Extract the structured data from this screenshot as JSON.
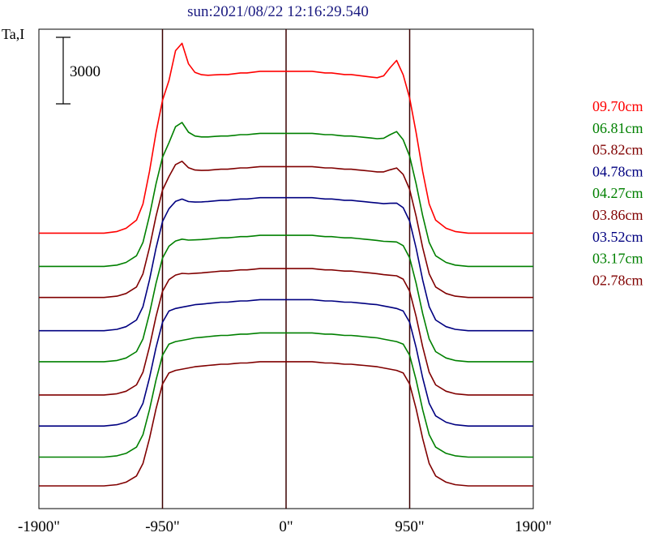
{
  "chart_data": {
    "type": "line",
    "title": "sun:2021/08/22 12:16:29.540",
    "ylabel": "Ta,I",
    "xlabel": "",
    "xlim": [
      -1900,
      1900
    ],
    "x_ticks": [
      -1900,
      -950,
      0,
      950,
      1900
    ],
    "x_tick_labels": [
      "-1900\"",
      "-950\"",
      "0\"",
      "950\"",
      "1900\""
    ],
    "vertical_lines": [
      -950,
      0,
      950
    ],
    "scale_bar": {
      "value": 3000,
      "label": "3000"
    },
    "curve_shape": {
      "x": [
        -1900,
        -1400,
        -1300,
        -1230,
        -1150,
        -1100,
        -1050,
        -1000,
        -950,
        -900,
        -850,
        -800,
        -750,
        -700,
        -650,
        -600,
        -550,
        -500,
        -450,
        -400,
        -350,
        -300,
        -250,
        -200,
        -150,
        -100,
        -50,
        0,
        50,
        100,
        150,
        200,
        250,
        300,
        350,
        400,
        450,
        500,
        550,
        600,
        650,
        700,
        750,
        800,
        850,
        900,
        950,
        1000,
        1050,
        1100,
        1150,
        1230,
        1300,
        1400,
        1900
      ],
      "disk": [
        0,
        0,
        0.01,
        0.03,
        0.08,
        0.18,
        0.38,
        0.62,
        0.82,
        0.91,
        0.93,
        0.94,
        0.95,
        0.96,
        0.965,
        0.97,
        0.975,
        0.98,
        0.98,
        0.985,
        0.99,
        0.99,
        0.995,
        1.0,
        1.0,
        1.0,
        1.0,
        1.0,
        1.0,
        1.0,
        1.0,
        1.0,
        0.995,
        0.99,
        0.99,
        0.985,
        0.98,
        0.98,
        0.975,
        0.97,
        0.965,
        0.96,
        0.95,
        0.94,
        0.93,
        0.91,
        0.82,
        0.62,
        0.38,
        0.18,
        0.08,
        0.03,
        0.01,
        0,
        0
      ],
      "limb": [
        0,
        0,
        0,
        0,
        0,
        0,
        0,
        0,
        0,
        0.12,
        0.72,
        0.85,
        0.35,
        0.12,
        0.05,
        0.02,
        0.01,
        0,
        0,
        0,
        0,
        0,
        0,
        0,
        0,
        0,
        0,
        0,
        0,
        0,
        0,
        0,
        0,
        0,
        0,
        0,
        0,
        0,
        0,
        0,
        0,
        0,
        0.08,
        0.3,
        0.5,
        0.25,
        0.05,
        0,
        0,
        0,
        0,
        0,
        0,
        0,
        0
      ]
    },
    "series": [
      {
        "name": "09.70cm",
        "color": "#ff0000",
        "baseline": 11400,
        "amplitude": 7300,
        "limb": 2000
      },
      {
        "name": "06.81cm",
        "color": "#008000",
        "baseline": 9900,
        "amplitude": 6000,
        "limb": 1000
      },
      {
        "name": "05.82cm",
        "color": "#800000",
        "baseline": 8500,
        "amplitude": 5900,
        "limb": 700
      },
      {
        "name": "04.78cm",
        "color": "#000080",
        "baseline": 7000,
        "amplitude": 6000,
        "limb": 350
      },
      {
        "name": "04.27cm",
        "color": "#008000",
        "baseline": 5600,
        "amplitude": 5700,
        "limb": 200
      },
      {
        "name": "03.86cm",
        "color": "#800000",
        "baseline": 4100,
        "amplitude": 5700,
        "limb": 150
      },
      {
        "name": "03.52cm",
        "color": "#000080",
        "baseline": 2700,
        "amplitude": 5700,
        "limb": 0
      },
      {
        "name": "03.17cm",
        "color": "#008000",
        "baseline": 1300,
        "amplitude": 5600,
        "limb": 0
      },
      {
        "name": "02.78cm",
        "color": "#800000",
        "baseline": 0,
        "amplitude": 5600,
        "limb": 0
      }
    ]
  }
}
